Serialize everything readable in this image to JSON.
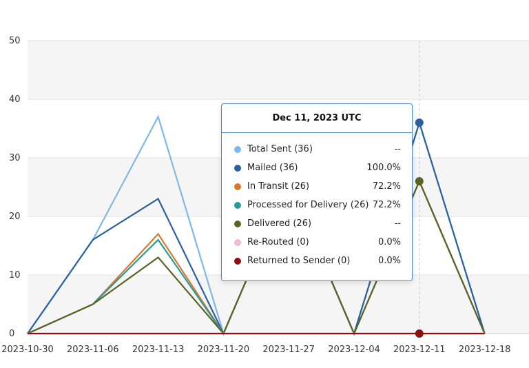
{
  "chart_data": {
    "type": "line",
    "categories": [
      "2023-10-30",
      "2023-11-06",
      "2023-11-13",
      "2023-11-20",
      "2023-11-27",
      "2023-12-04",
      "2023-12-11",
      "2023-12-18"
    ],
    "ylim": [
      0,
      50
    ],
    "yticks": [
      0,
      10,
      20,
      30,
      40,
      50
    ],
    "grid": true,
    "series": [
      {
        "name": "Total Sent",
        "color": "#7fb8e6",
        "values": [
          0,
          16,
          37,
          0,
          26,
          0,
          36,
          0
        ]
      },
      {
        "name": "Mailed",
        "color": "#2a5fa4",
        "values": [
          0,
          16,
          23,
          0,
          26,
          0,
          36,
          0
        ]
      },
      {
        "name": "In Transit",
        "color": "#d47a2d",
        "values": [
          0,
          5,
          17,
          0,
          26,
          0,
          26,
          0
        ]
      },
      {
        "name": "Processed for Delivery",
        "color": "#2a9a96",
        "values": [
          0,
          5,
          16,
          0,
          26,
          0,
          26,
          0
        ]
      },
      {
        "name": "Delivered",
        "color": "#5c6224",
        "values": [
          0,
          5,
          13,
          0,
          26,
          0,
          26,
          0
        ]
      },
      {
        "name": "Re-Routed",
        "color": "#f2b8d4",
        "values": [
          0,
          0,
          0,
          0,
          0,
          0,
          0,
          0
        ]
      },
      {
        "name": "Returned to Sender",
        "color": "#8b1212",
        "values": [
          0,
          0,
          0,
          0,
          0,
          0,
          0,
          0
        ]
      }
    ],
    "hover_category": "2023-12-11"
  },
  "tooltip": {
    "title": "Dec 11, 2023 UTC",
    "rows": [
      {
        "label": "Total Sent (36)",
        "value": "--",
        "color": "#7fb8e6"
      },
      {
        "label": "Mailed (36)",
        "value": "100.0%",
        "color": "#2a5fa4"
      },
      {
        "label": "In Transit (26)",
        "value": "72.2%",
        "color": "#d47a2d"
      },
      {
        "label": "Processed for Delivery (26)",
        "value": "72.2%",
        "color": "#2a9a96"
      },
      {
        "label": "Delivered (26)",
        "value": "--",
        "color": "#5c6224"
      },
      {
        "label": "Re-Routed (0)",
        "value": "0.0%",
        "color": "#f2b8d4"
      },
      {
        "label": "Returned to Sender (0)",
        "value": "0.0%",
        "color": "#8b1212"
      }
    ]
  }
}
